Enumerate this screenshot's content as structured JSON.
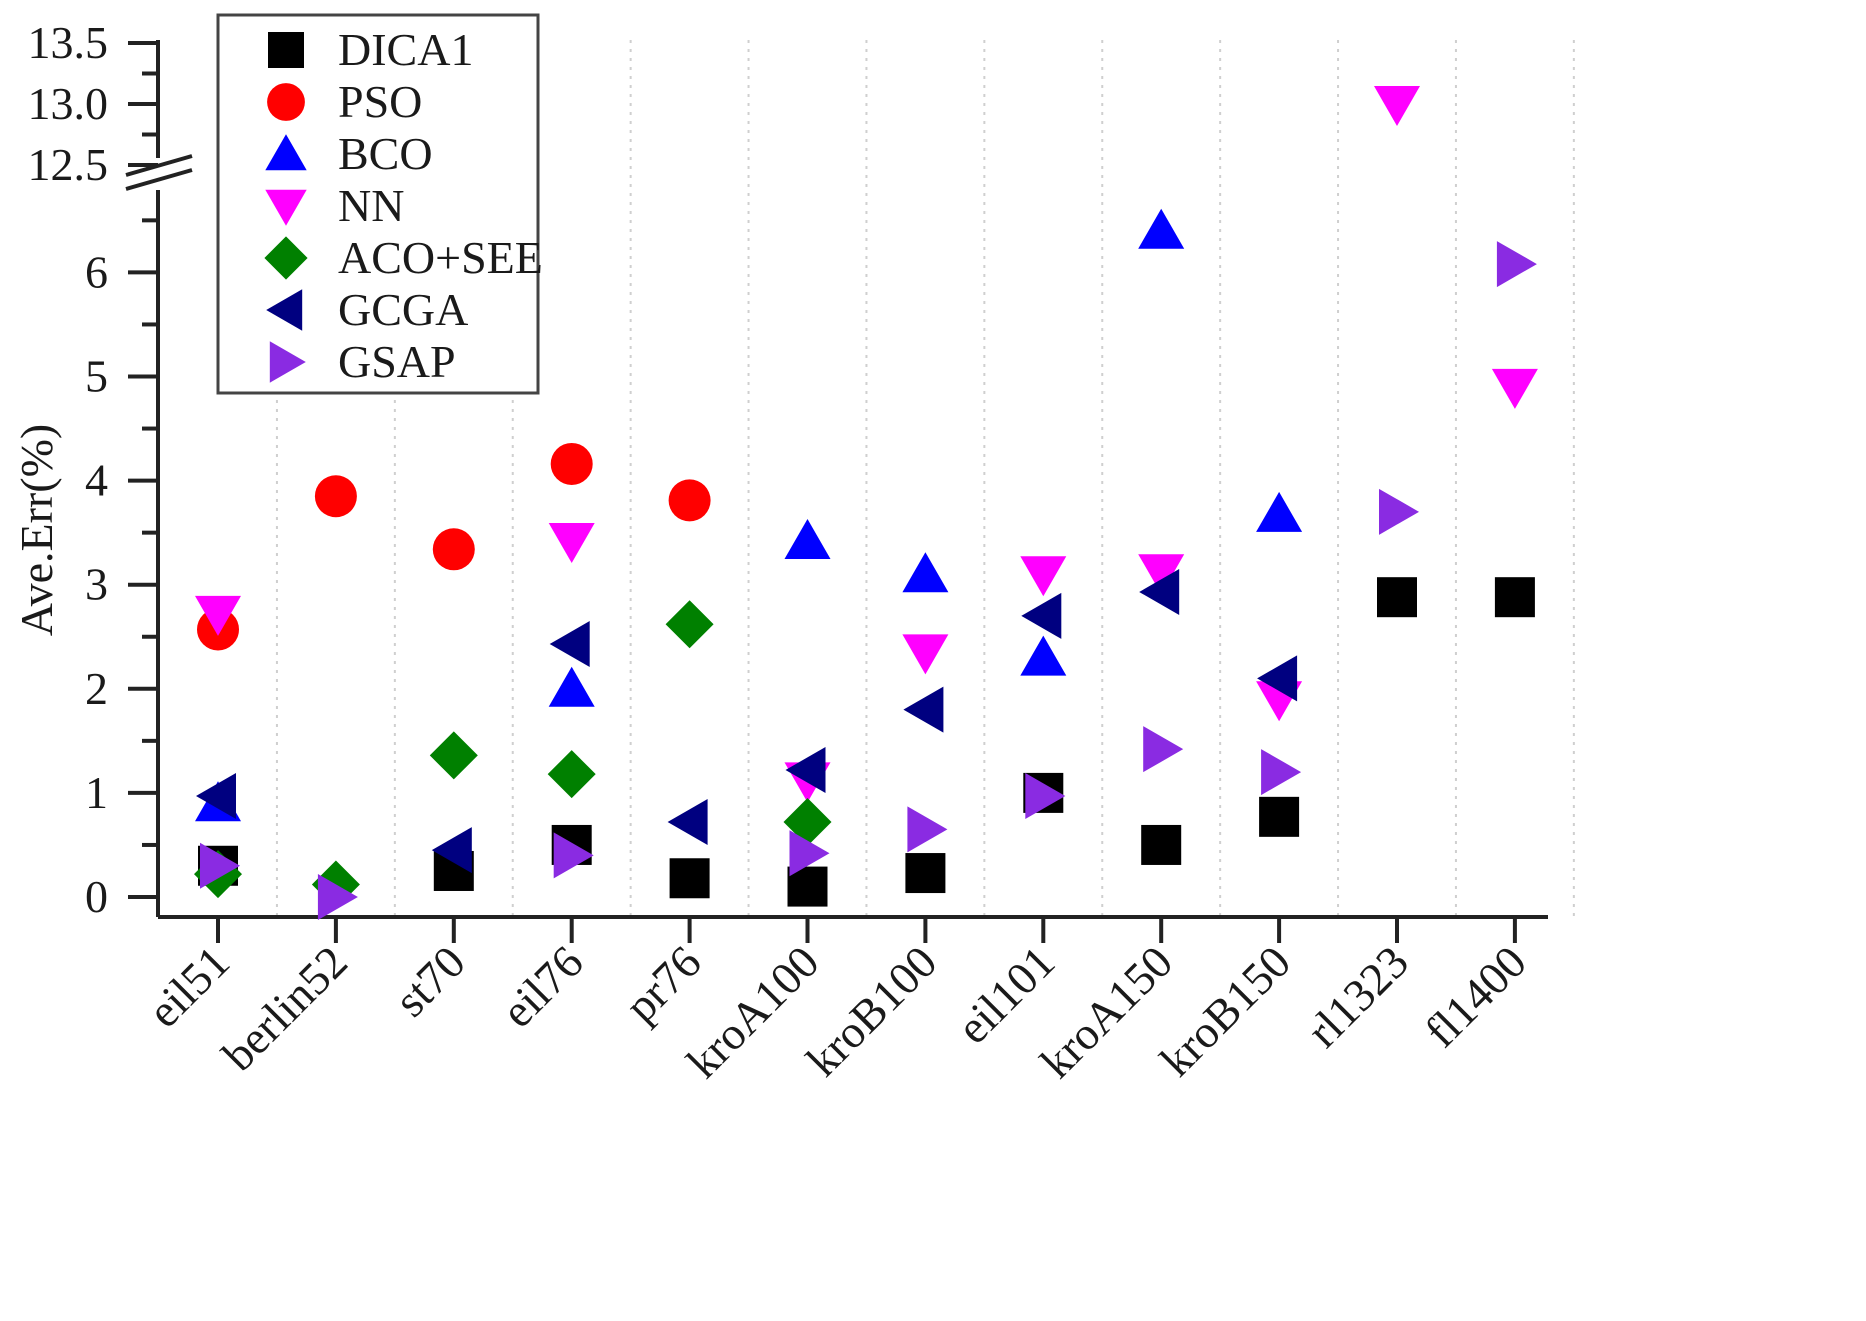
{
  "chart_data": {
    "type": "scatter",
    "title": "",
    "xlabel": "",
    "ylabel": "Ave.Err(%)",
    "categories": [
      "eil51",
      "berlin52",
      "st70",
      "eil76",
      "pr76",
      "kroA100",
      "kroB100",
      "eil101",
      "kroA150",
      "kroB150",
      "rl1323",
      "fl1400"
    ],
    "y_axis": {
      "lower_range": [
        0,
        6.9
      ],
      "upper_range": [
        12.4,
        13.6
      ],
      "lower_ticks": [
        "0",
        "1",
        "2",
        "3",
        "4",
        "5",
        "6"
      ],
      "upper_ticks": [
        "12.5",
        "13.0",
        "13.5"
      ],
      "break": true
    },
    "grid": "vertical dotted",
    "legend_position": "top-left",
    "series": [
      {
        "name": "DICA1",
        "marker": "square",
        "color": "#000000",
        "values": [
          0.3,
          null,
          0.25,
          0.5,
          0.18,
          0.1,
          0.23,
          1.0,
          0.5,
          0.77,
          2.88,
          2.88
        ]
      },
      {
        "name": "PSO",
        "marker": "circle",
        "color": "#ff0000",
        "values": [
          2.57,
          3.85,
          3.34,
          4.16,
          3.81,
          null,
          null,
          null,
          null,
          null,
          null,
          null
        ]
      },
      {
        "name": "BCO",
        "marker": "triangle-up",
        "color": "#0000ff",
        "values": [
          0.9,
          null,
          null,
          2.0,
          null,
          3.42,
          3.1,
          2.3,
          6.4,
          3.68,
          null,
          null
        ]
      },
      {
        "name": "NN",
        "marker": "triangle-down",
        "color": "#ff00ff",
        "values": [
          2.72,
          null,
          null,
          3.42,
          null,
          1.12,
          2.35,
          3.1,
          3.12,
          1.9,
          13.0,
          4.9
        ]
      },
      {
        "name": "ACO+SEE",
        "marker": "diamond",
        "color": "#008000",
        "values": [
          0.22,
          0.12,
          1.36,
          1.18,
          2.62,
          0.72,
          null,
          null,
          null,
          null,
          null,
          null
        ]
      },
      {
        "name": "GCGA",
        "marker": "triangle-left",
        "color": "#000080",
        "values": [
          0.97,
          null,
          0.45,
          2.43,
          0.72,
          1.22,
          1.8,
          2.7,
          2.93,
          2.1,
          null,
          null
        ]
      },
      {
        "name": "GSAP",
        "marker": "triangle-right",
        "color": "#8a2be2",
        "values": [
          0.3,
          0.0,
          null,
          0.4,
          null,
          0.42,
          0.65,
          0.97,
          1.42,
          1.2,
          3.7,
          6.08
        ]
      }
    ]
  }
}
